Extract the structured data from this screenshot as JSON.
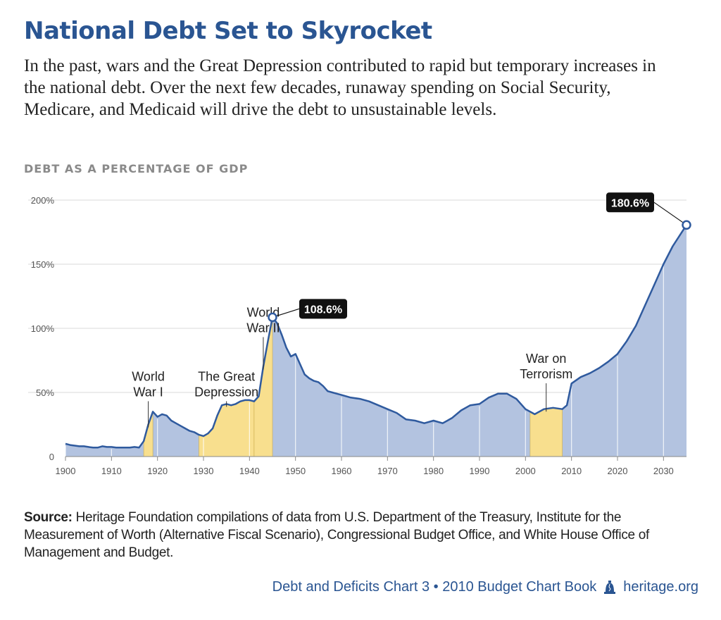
{
  "title": "National Debt Set to Skyrocket",
  "subtitle": "In the past, wars and the Great Depression contributed to rapid but temporary increases in the national debt. Over the next few decades, runaway spending on Social Security, Medicare, and Medicaid will drive the debt to unsustainable levels.",
  "section_label": "DEBT AS A PERCENTAGE OF GDP",
  "source": {
    "label": "Source:",
    "text": "Heritage Foundation compilations of data from U.S. Department of the Treasury, Institute for the Measurement of Worth (Alternative Fiscal Scenario), Congressional Budget Office, and White House Office of Management and Budget."
  },
  "footer": {
    "text": "Debt and Deficits Chart 3 • 2010 Budget Chart Book",
    "site": "heritage.org"
  },
  "colors": {
    "title": "#2a5592",
    "area_fill": "#b3c3e0",
    "area_stroke": "#2f5a9e",
    "highlight_fill": "#f8df8e",
    "grid": "#d8d8d8",
    "callout_bg": "#111111"
  },
  "chart_data": {
    "type": "area",
    "title": "DEBT AS A PERCENTAGE OF GDP",
    "xlabel": "",
    "ylabel": "",
    "xlim": [
      1900,
      2035
    ],
    "ylim": [
      0,
      200
    ],
    "y_ticks": [
      0,
      50,
      100,
      150,
      200
    ],
    "y_tick_labels": [
      "0",
      "50%",
      "100%",
      "150%",
      "200%"
    ],
    "x_ticks": [
      1900,
      1910,
      1920,
      1930,
      1940,
      1950,
      1960,
      1970,
      1980,
      1990,
      2000,
      2010,
      2020,
      2030
    ],
    "x_tick_labels": [
      "1900",
      "1910",
      "1920",
      "1930",
      "1940",
      "1950",
      "1960",
      "1970",
      "1980",
      "1990",
      "2000",
      "2010",
      "2020",
      "2030"
    ],
    "series": [
      {
        "name": "Debt as a percentage of GDP",
        "x": [
          1900,
          1901,
          1902,
          1903,
          1904,
          1905,
          1906,
          1907,
          1908,
          1909,
          1910,
          1911,
          1912,
          1913,
          1914,
          1915,
          1916,
          1917,
          1918,
          1919,
          1920,
          1921,
          1922,
          1923,
          1924,
          1925,
          1926,
          1927,
          1928,
          1929,
          1930,
          1931,
          1932,
          1933,
          1934,
          1935,
          1936,
          1937,
          1938,
          1939,
          1940,
          1941,
          1942,
          1943,
          1944,
          1945,
          1946,
          1947,
          1948,
          1949,
          1950,
          1951,
          1952,
          1953,
          1954,
          1955,
          1956,
          1957,
          1958,
          1959,
          1960,
          1962,
          1964,
          1966,
          1968,
          1970,
          1972,
          1974,
          1976,
          1978,
          1980,
          1982,
          1984,
          1986,
          1988,
          1990,
          1992,
          1994,
          1996,
          1998,
          2000,
          2002,
          2004,
          2006,
          2008,
          2009,
          2010,
          2012,
          2014,
          2016,
          2018,
          2020,
          2022,
          2024,
          2026,
          2028,
          2030,
          2032,
          2035
        ],
        "values": [
          10,
          9,
          8.5,
          8,
          8,
          7.5,
          7,
          7,
          8,
          7.5,
          7.5,
          7,
          7,
          7,
          7,
          7.5,
          7,
          12,
          25,
          35,
          31,
          33,
          32,
          28,
          26,
          24,
          22,
          20,
          19,
          17,
          16,
          18,
          22,
          32,
          40,
          41,
          40,
          41,
          43,
          44,
          44,
          43,
          47,
          70,
          90,
          108.6,
          104,
          95,
          85,
          78,
          80,
          72,
          64,
          61,
          59,
          58,
          55,
          51,
          50,
          49,
          48,
          46,
          45,
          43,
          40,
          37,
          34,
          29,
          28,
          26,
          28,
          26,
          30,
          36,
          40,
          41,
          46,
          49,
          49,
          45,
          37,
          33,
          37,
          38,
          37,
          40,
          57,
          62,
          65,
          69,
          74,
          80,
          90,
          102,
          118,
          134,
          150,
          164,
          180.6
        ]
      }
    ],
    "highlights": [
      {
        "label": "World War I",
        "start": 1917,
        "end": 1919
      },
      {
        "label": "The Great Depression",
        "start": 1929,
        "end": 1941
      },
      {
        "label": "World War II",
        "start": 1941,
        "end": 1945
      },
      {
        "label": "War on Terrorism",
        "start": 2001,
        "end": 2008
      }
    ],
    "annotations": [
      {
        "lines": [
          "World",
          "War I"
        ],
        "x": 1918,
        "text_y": 47
      },
      {
        "lines": [
          "The Great",
          "Depression"
        ],
        "x": 1935,
        "text_y": 47
      },
      {
        "lines": [
          "World",
          "War II"
        ],
        "x": 1943,
        "text_y": 97
      },
      {
        "lines": [
          "War on",
          "Terrorism"
        ],
        "x": 2004.5,
        "text_y": 61
      }
    ],
    "callouts": [
      {
        "label": "108.6%",
        "x": 1945,
        "value": 108.6
      },
      {
        "label": "180.6%",
        "x": 2035,
        "value": 180.6
      }
    ]
  }
}
